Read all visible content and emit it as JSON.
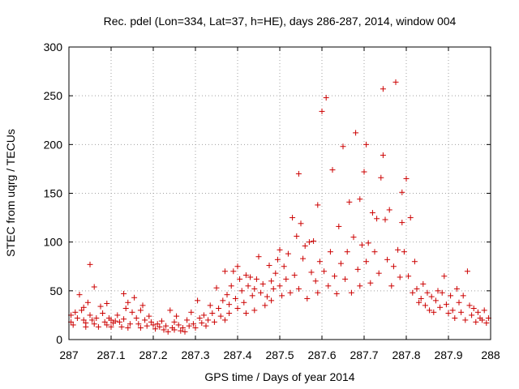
{
  "chart_data": {
    "type": "scatter",
    "title": "Rec. pdel (Lon=334, Lat=37, h=HE), days 286-287, 2014, window 004",
    "xlabel": "GPS time / Days of year 2014",
    "ylabel": "STEC from uqrg / TECUs",
    "xlim": [
      287,
      288
    ],
    "ylim": [
      0,
      300
    ],
    "x_ticks": [
      287,
      287.1,
      287.2,
      287.3,
      287.4,
      287.5,
      287.6,
      287.7,
      287.8,
      287.9,
      288
    ],
    "x_tick_labels": [
      "287",
      "287.1",
      "287.2",
      "287.3",
      "287.4",
      "287.5",
      "287.6",
      "287.7",
      "287.8",
      "287.9",
      "288"
    ],
    "y_ticks": [
      0,
      50,
      100,
      150,
      200,
      250,
      300
    ],
    "y_tick_labels": [
      "0",
      "50",
      "100",
      "150",
      "200",
      "250",
      "300"
    ],
    "grid": true,
    "marker": "+",
    "marker_color": "#cc0000",
    "series": [
      {
        "name": "STEC",
        "points": [
          [
            287.005,
            25
          ],
          [
            287.005,
            18
          ],
          [
            287.01,
            15
          ],
          [
            287.015,
            28
          ],
          [
            287.02,
            22
          ],
          [
            287.025,
            46
          ],
          [
            287.03,
            30
          ],
          [
            287.035,
            33
          ],
          [
            287.035,
            20
          ],
          [
            287.04,
            17
          ],
          [
            287.04,
            13
          ],
          [
            287.045,
            38
          ],
          [
            287.05,
            77
          ],
          [
            287.05,
            25
          ],
          [
            287.055,
            20
          ],
          [
            287.06,
            54
          ],
          [
            287.06,
            16
          ],
          [
            287.065,
            22
          ],
          [
            287.07,
            13
          ],
          [
            287.075,
            34
          ],
          [
            287.08,
            27
          ],
          [
            287.085,
            18
          ],
          [
            287.09,
            37
          ],
          [
            287.09,
            15
          ],
          [
            287.095,
            22
          ],
          [
            287.1,
            20
          ],
          [
            287.1,
            13
          ],
          [
            287.105,
            17
          ],
          [
            287.11,
            19
          ],
          [
            287.115,
            25
          ],
          [
            287.12,
            18
          ],
          [
            287.125,
            13
          ],
          [
            287.13,
            47
          ],
          [
            287.13,
            21
          ],
          [
            287.135,
            32
          ],
          [
            287.14,
            38
          ],
          [
            287.14,
            12
          ],
          [
            287.145,
            16
          ],
          [
            287.15,
            28
          ],
          [
            287.155,
            43
          ],
          [
            287.16,
            22
          ],
          [
            287.165,
            16
          ],
          [
            287.17,
            30
          ],
          [
            287.17,
            12
          ],
          [
            287.175,
            35
          ],
          [
            287.18,
            20
          ],
          [
            287.185,
            14
          ],
          [
            287.19,
            24
          ],
          [
            287.195,
            18
          ],
          [
            287.2,
            15
          ],
          [
            287.205,
            11
          ],
          [
            287.21,
            16
          ],
          [
            287.215,
            13
          ],
          [
            287.22,
            19
          ],
          [
            287.225,
            10
          ],
          [
            287.23,
            14
          ],
          [
            287.235,
            8
          ],
          [
            287.24,
            30
          ],
          [
            287.245,
            12
          ],
          [
            287.25,
            18
          ],
          [
            287.25,
            10
          ],
          [
            287.255,
            24
          ],
          [
            287.26,
            15
          ],
          [
            287.265,
            9
          ],
          [
            287.27,
            12
          ],
          [
            287.275,
            8
          ],
          [
            287.28,
            20
          ],
          [
            287.285,
            14
          ],
          [
            287.29,
            28
          ],
          [
            287.295,
            16
          ],
          [
            287.3,
            12
          ],
          [
            287.305,
            40
          ],
          [
            287.31,
            22
          ],
          [
            287.315,
            17
          ],
          [
            287.32,
            25
          ],
          [
            287.325,
            14
          ],
          [
            287.33,
            20
          ],
          [
            287.335,
            35
          ],
          [
            287.34,
            27
          ],
          [
            287.345,
            18
          ],
          [
            287.35,
            53
          ],
          [
            287.355,
            32
          ],
          [
            287.36,
            24
          ],
          [
            287.365,
            40
          ],
          [
            287.37,
            70
          ],
          [
            287.37,
            20
          ],
          [
            287.375,
            46
          ],
          [
            287.38,
            36
          ],
          [
            287.38,
            27
          ],
          [
            287.385,
            55
          ],
          [
            287.39,
            70
          ],
          [
            287.395,
            42
          ],
          [
            287.4,
            75
          ],
          [
            287.4,
            32
          ],
          [
            287.405,
            62
          ],
          [
            287.41,
            50
          ],
          [
            287.415,
            38
          ],
          [
            287.42,
            66
          ],
          [
            287.42,
            27
          ],
          [
            287.425,
            55
          ],
          [
            287.43,
            64
          ],
          [
            287.435,
            45
          ],
          [
            287.44,
            52
          ],
          [
            287.44,
            30
          ],
          [
            287.445,
            62
          ],
          [
            287.45,
            85
          ],
          [
            287.455,
            48
          ],
          [
            287.46,
            57
          ],
          [
            287.465,
            35
          ],
          [
            287.47,
            44
          ],
          [
            287.475,
            76
          ],
          [
            287.48,
            60
          ],
          [
            287.48,
            40
          ],
          [
            287.485,
            52
          ],
          [
            287.49,
            68
          ],
          [
            287.495,
            82
          ],
          [
            287.5,
            92
          ],
          [
            287.5,
            55
          ],
          [
            287.505,
            45
          ],
          [
            287.51,
            75
          ],
          [
            287.515,
            62
          ],
          [
            287.52,
            88
          ],
          [
            287.525,
            48
          ],
          [
            287.53,
            125
          ],
          [
            287.535,
            66
          ],
          [
            287.54,
            106
          ],
          [
            287.545,
            170
          ],
          [
            287.545,
            52
          ],
          [
            287.55,
            119
          ],
          [
            287.555,
            83
          ],
          [
            287.56,
            96
          ],
          [
            287.565,
            42
          ],
          [
            287.57,
            100
          ],
          [
            287.575,
            69
          ],
          [
            287.58,
            101
          ],
          [
            287.585,
            60
          ],
          [
            287.59,
            138
          ],
          [
            287.59,
            48
          ],
          [
            287.595,
            80
          ],
          [
            287.6,
            234
          ],
          [
            287.605,
            70
          ],
          [
            287.61,
            248
          ],
          [
            287.615,
            55
          ],
          [
            287.62,
            90
          ],
          [
            287.625,
            174
          ],
          [
            287.63,
            65
          ],
          [
            287.635,
            47
          ],
          [
            287.64,
            116
          ],
          [
            287.645,
            78
          ],
          [
            287.65,
            198
          ],
          [
            287.655,
            62
          ],
          [
            287.66,
            90
          ],
          [
            287.665,
            141
          ],
          [
            287.67,
            48
          ],
          [
            287.675,
            105
          ],
          [
            287.68,
            212
          ],
          [
            287.685,
            72
          ],
          [
            287.69,
            144
          ],
          [
            287.69,
            55
          ],
          [
            287.695,
            97
          ],
          [
            287.7,
            172
          ],
          [
            287.705,
            200
          ],
          [
            287.705,
            80
          ],
          [
            287.71,
            99
          ],
          [
            287.715,
            58
          ],
          [
            287.72,
            130
          ],
          [
            287.725,
            90
          ],
          [
            287.73,
            124
          ],
          [
            287.735,
            68
          ],
          [
            287.74,
            166
          ],
          [
            287.745,
            189
          ],
          [
            287.745,
            257
          ],
          [
            287.75,
            123
          ],
          [
            287.755,
            82
          ],
          [
            287.76,
            133
          ],
          [
            287.765,
            55
          ],
          [
            287.77,
            75
          ],
          [
            287.775,
            264
          ],
          [
            287.78,
            92
          ],
          [
            287.785,
            64
          ],
          [
            287.79,
            151
          ],
          [
            287.79,
            120
          ],
          [
            287.795,
            90
          ],
          [
            287.8,
            165
          ],
          [
            287.805,
            65
          ],
          [
            287.81,
            125
          ],
          [
            287.815,
            48
          ],
          [
            287.82,
            80
          ],
          [
            287.825,
            52
          ],
          [
            287.83,
            38
          ],
          [
            287.835,
            42
          ],
          [
            287.84,
            57
          ],
          [
            287.845,
            35
          ],
          [
            287.85,
            48
          ],
          [
            287.855,
            30
          ],
          [
            287.86,
            44
          ],
          [
            287.865,
            28
          ],
          [
            287.87,
            40
          ],
          [
            287.875,
            50
          ],
          [
            287.88,
            33
          ],
          [
            287.885,
            48
          ],
          [
            287.89,
            65
          ],
          [
            287.895,
            36
          ],
          [
            287.9,
            27
          ],
          [
            287.905,
            45
          ],
          [
            287.91,
            30
          ],
          [
            287.915,
            22
          ],
          [
            287.92,
            52
          ],
          [
            287.925,
            38
          ],
          [
            287.93,
            28
          ],
          [
            287.935,
            45
          ],
          [
            287.94,
            20
          ],
          [
            287.945,
            70
          ],
          [
            287.95,
            35
          ],
          [
            287.955,
            25
          ],
          [
            287.96,
            32
          ],
          [
            287.965,
            18
          ],
          [
            287.97,
            28
          ],
          [
            287.975,
            22
          ],
          [
            287.98,
            20
          ],
          [
            287.985,
            30
          ],
          [
            287.99,
            17
          ],
          [
            287.995,
            22
          ]
        ]
      }
    ]
  }
}
